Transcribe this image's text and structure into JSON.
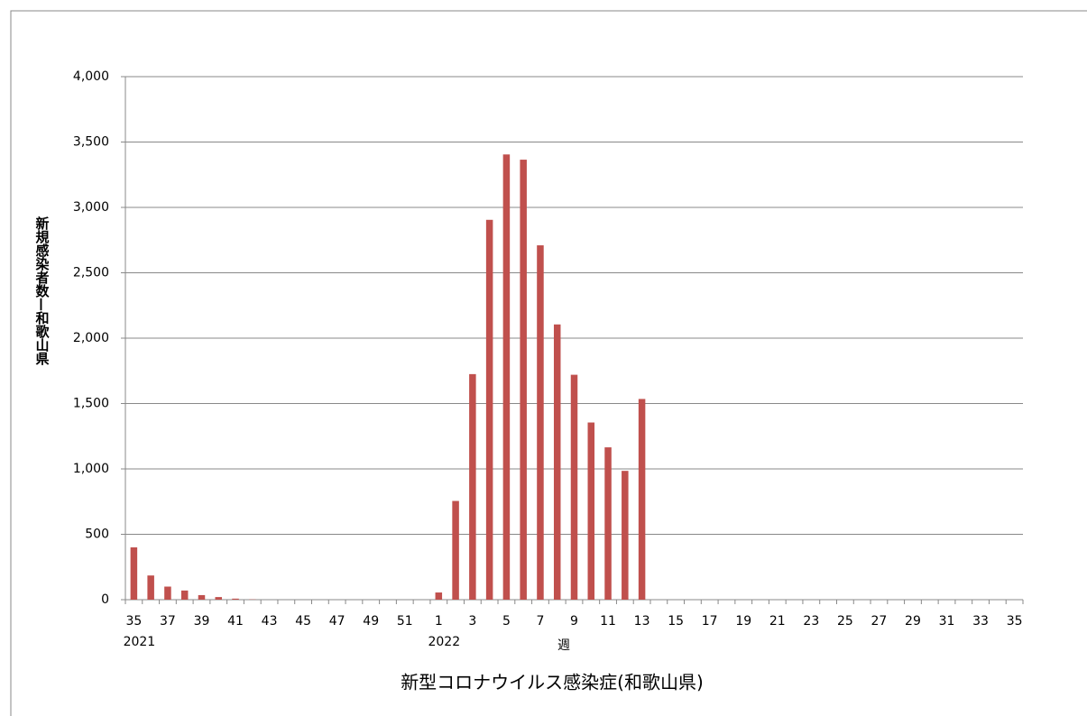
{
  "chart_data": {
    "type": "bar",
    "title": "新型コロナウイルス感染症(和歌山県)",
    "x_label": "週",
    "y_label": "新規感染者数—和歌山県",
    "categories": [
      "35",
      null,
      "37",
      null,
      "39",
      null,
      "41",
      null,
      "43",
      null,
      "45",
      null,
      "47",
      null,
      "49",
      null,
      "51",
      null,
      "1",
      null,
      "3",
      null,
      "5",
      null,
      "7",
      null,
      "9",
      null,
      "11",
      null,
      "13",
      null,
      "15",
      null,
      "17",
      null,
      "19",
      null,
      "21",
      null,
      "23",
      null,
      "25",
      null,
      "27",
      null,
      "29",
      null,
      "31",
      null,
      "33",
      null,
      "35"
    ],
    "years": [
      "2021",
      null,
      null,
      null,
      null,
      null,
      null,
      null,
      null,
      null,
      null,
      null,
      null,
      null,
      null,
      null,
      null,
      null,
      "2022",
      null,
      null,
      null,
      null,
      null,
      null,
      null,
      null,
      null,
      null,
      null,
      null,
      null,
      null,
      null,
      null,
      null,
      null,
      null,
      null,
      null,
      null,
      null,
      null,
      null,
      null,
      null,
      null,
      null,
      null,
      null,
      null,
      null,
      null
    ],
    "values": [
      400,
      185,
      100,
      70,
      35,
      20,
      8,
      2,
      0,
      0,
      0,
      0,
      0,
      0,
      0,
      0,
      0,
      0,
      55,
      755,
      1725,
      2905,
      3405,
      3365,
      2710,
      2105,
      1720,
      1355,
      1165,
      985,
      1535,
      null,
      null,
      null,
      null,
      null,
      null,
      null,
      null,
      null,
      null,
      null,
      null,
      null,
      null,
      null,
      null,
      null,
      null,
      null,
      null,
      null,
      null
    ],
    "color": "#c0504d",
    "ylim": [
      0,
      4000
    ],
    "yticks": [
      0,
      500,
      {
        "value": 1000,
        "label": "1,000"
      },
      {
        "value": 1500,
        "label": "1,500"
      },
      {
        "value": 2000,
        "label": "2,000"
      },
      {
        "value": 2500,
        "label": "2,500"
      },
      {
        "value": 3000,
        "label": "3,000"
      },
      {
        "value": 3500,
        "label": "3,500"
      },
      {
        "value": 4000,
        "label": "4,000"
      }
    ],
    "grid": true
  }
}
